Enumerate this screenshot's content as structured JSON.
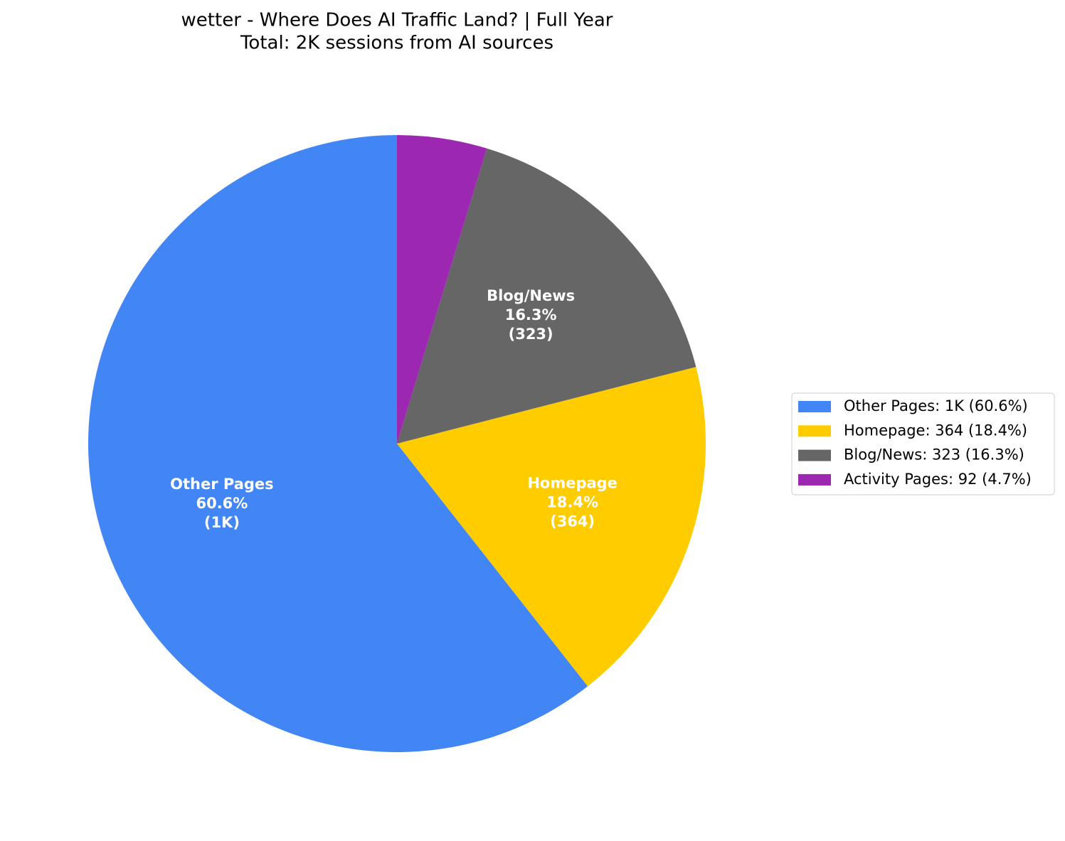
{
  "chart_data": {
    "type": "pie",
    "title": "wetter - Where Does AI Traffic Land? | Full Year",
    "subtitle": "Total: 2K sessions from AI sources",
    "categories": [
      "Other Pages",
      "Homepage",
      "Blog/News",
      "Activity Pages"
    ],
    "values": [
      60.6,
      18.4,
      16.3,
      4.7
    ],
    "value_labels": [
      "60.6%",
      "18.4%",
      "16.3%",
      "4.7%"
    ],
    "counts": [
      1199,
      364,
      323,
      92
    ],
    "count_labels": [
      "(1K)",
      "(364)",
      "(323)",
      "(92)"
    ],
    "colors": [
      "#4285f4",
      "#ffcc00",
      "#666666",
      "#9c27b0"
    ],
    "legend_labels": [
      "Other Pages: 1K (60.6%)",
      "Homepage: 364 (18.4%)",
      "Blog/News: 323 (16.3%)",
      "Activity Pages: 92 (4.7%)"
    ],
    "legend": "right",
    "start_angle": 90,
    "counterclockwise": true
  }
}
